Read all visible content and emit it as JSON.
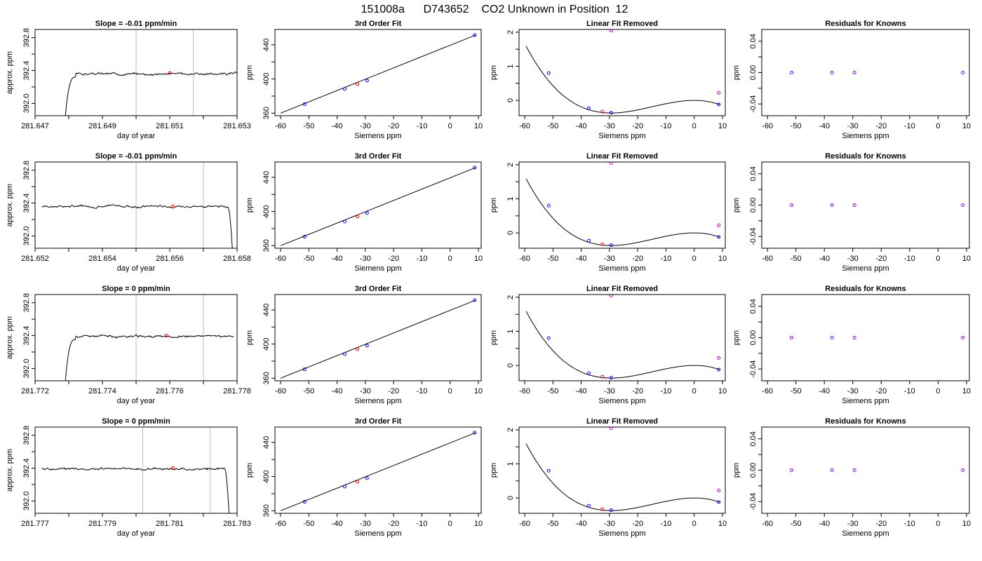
{
  "page_title": "151008a      D743652    CO2 Unknown in Position  12",
  "colors": {
    "frame": "#000000",
    "curve": "#000000",
    "known": "#0000ff",
    "unknown": "#ff0000",
    "removed": "#d000d0",
    "vline": "#bebebe"
  },
  "chart_data": [
    {
      "type": "line",
      "row": 0,
      "panel": "trace",
      "title": "Slope =  -0.01  ppm/min",
      "xlabel": "day of year",
      "ylabel": "approx. ppm",
      "xlim": [
        281.647,
        281.653
      ],
      "ylim": [
        391.85,
        392.9
      ],
      "xticks": [
        "281.647",
        "281.648",
        "281.649",
        "281.650",
        "281.651",
        "281.652",
        "281.653"
      ],
      "xtick_labels": [
        "281.647",
        "",
        "281.649",
        "",
        "281.651",
        "",
        "281.653"
      ],
      "yticks": [
        392.0,
        392.2,
        392.4,
        392.6,
        392.8
      ],
      "ytick_labels": [
        "392.0",
        "",
        "392.4",
        "",
        "392.8"
      ],
      "vlines": [
        281.65,
        281.6517
      ],
      "marker": {
        "x": 281.651,
        "y": 392.37
      },
      "trace": {
        "start": 281.6479,
        "end": 281.653,
        "rise_from": 391.84,
        "level": 392.36,
        "wiggle": 0.02,
        "seed": 3,
        "tail": false
      }
    },
    {
      "type": "scatter",
      "row": 0,
      "panel": "fit",
      "title": "3rd Order Fit",
      "xlabel": "Siemens ppm",
      "ylabel": "ppm",
      "xlim": [
        -62,
        11
      ],
      "ylim": [
        357,
        458
      ],
      "xticks": [
        -60,
        -50,
        -40,
        -30,
        -20,
        -10,
        0,
        10
      ],
      "yticks": [
        360,
        400,
        440
      ],
      "yminor": [
        380,
        420
      ],
      "knowns": [
        {
          "x": -51.5,
          "y": 370.5
        },
        {
          "x": -37.3,
          "y": 388.3
        },
        {
          "x": -29.4,
          "y": 398.2
        },
        {
          "x": 8.7,
          "y": 451.4
        }
      ],
      "unknown": {
        "x": -32.8,
        "y": 394.0
      },
      "line": {
        "x": [
          -60,
          9
        ],
        "y": [
          360,
          451.4
        ]
      }
    },
    {
      "type": "scatter",
      "row": 0,
      "panel": "resid",
      "title": "Linear Fit Removed",
      "xlabel": "Siemens ppm",
      "ylabel": "ppm",
      "xlim": [
        -62,
        11
      ],
      "ylim": [
        -0.45,
        2.08
      ],
      "xticks": [
        -60,
        -50,
        -40,
        -30,
        -20,
        -10,
        0,
        10
      ],
      "yticks": [
        0.0,
        1.0,
        2.0
      ],
      "yminor": [
        0.5,
        1.5
      ],
      "knowns": [
        {
          "x": -51.5,
          "y": 0.8
        },
        {
          "x": -37.3,
          "y": -0.23
        },
        {
          "x": -29.4,
          "y": -0.36
        },
        {
          "x": 8.7,
          "y": -0.12
        }
      ],
      "unknown": {
        "x": -32.5,
        "y": -0.33
      },
      "removed": [
        {
          "x": -29.4,
          "y": 2.05
        },
        {
          "x": 8.7,
          "y": 0.22
        }
      ],
      "curve": {
        "x0": -59.5,
        "x1": 9,
        "min": -29.4,
        "max": 0,
        "ymin": -0.37,
        "ymax": 0.0
      }
    },
    {
      "type": "scatter",
      "row": 0,
      "panel": "known",
      "title": "Residuals for Knowns",
      "xlabel": "Siemens ppm",
      "ylabel": "ppm",
      "xlim": [
        -62,
        11
      ],
      "ylim": [
        -0.055,
        0.055
      ],
      "xticks": [
        -60,
        -50,
        -40,
        -30,
        -20,
        -10,
        0,
        10
      ],
      "yticks": [
        -0.04,
        0.0,
        0.04
      ],
      "yminor": [
        -0.02,
        0.02
      ],
      "ytick_labels": [
        "-0.04",
        "0.00",
        "0.04"
      ],
      "knowns": [
        {
          "x": -51.5,
          "y": 0
        },
        {
          "x": -37.3,
          "y": 0
        },
        {
          "x": -29.4,
          "y": 0
        },
        {
          "x": 8.7,
          "y": 0
        }
      ]
    },
    {
      "type": "line",
      "row": 1,
      "panel": "trace",
      "title": "Slope =  -0.01  ppm/min",
      "xlabel": "day of year",
      "ylabel": "approx. ppm",
      "xlim": [
        281.652,
        281.658
      ],
      "ylim": [
        391.85,
        392.9
      ],
      "xticks": [
        "281.652",
        "281.653",
        "281.654",
        "281.655",
        "281.656",
        "281.657",
        "281.658"
      ],
      "xtick_labels": [
        "281.652",
        "",
        "281.654",
        "",
        "281.656",
        "",
        "281.658"
      ],
      "yticks": [
        392.0,
        392.2,
        392.4,
        392.6,
        392.8
      ],
      "ytick_labels": [
        "392.0",
        "",
        "392.4",
        "",
        "392.8"
      ],
      "vlines": [
        281.655,
        281.657
      ],
      "marker": {
        "x": 281.6561,
        "y": 392.36
      },
      "trace": {
        "start": 281.6522,
        "end": 281.6579,
        "rise_from": 391.84,
        "level": 392.36,
        "wiggle": 0.02,
        "seed": 7,
        "tail": true
      }
    },
    {
      "type": "scatter",
      "row": 1,
      "panel": "fit",
      "title": "3rd Order Fit",
      "xlabel": "Siemens ppm",
      "ylabel": "ppm",
      "xlim": [
        -62,
        11
      ],
      "ylim": [
        357,
        458
      ],
      "xticks": [
        -60,
        -50,
        -40,
        -30,
        -20,
        -10,
        0,
        10
      ],
      "yticks": [
        360,
        400,
        440
      ],
      "yminor": [
        380,
        420
      ],
      "knowns": [
        {
          "x": -51.5,
          "y": 370.5
        },
        {
          "x": -37.3,
          "y": 388.3
        },
        {
          "x": -29.4,
          "y": 398.2
        },
        {
          "x": 8.7,
          "y": 451.4
        }
      ],
      "unknown": {
        "x": -32.8,
        "y": 394.0
      },
      "line": {
        "x": [
          -60,
          9
        ],
        "y": [
          360,
          451.4
        ]
      }
    },
    {
      "type": "scatter",
      "row": 1,
      "panel": "resid",
      "title": "Linear Fit Removed",
      "xlabel": "Siemens ppm",
      "ylabel": "ppm",
      "xlim": [
        -62,
        11
      ],
      "ylim": [
        -0.45,
        2.08
      ],
      "xticks": [
        -60,
        -50,
        -40,
        -30,
        -20,
        -10,
        0,
        10
      ],
      "yticks": [
        0.0,
        1.0,
        2.0
      ],
      "yminor": [
        0.5,
        1.5
      ],
      "knowns": [
        {
          "x": -51.5,
          "y": 0.8
        },
        {
          "x": -37.3,
          "y": -0.23
        },
        {
          "x": -29.4,
          "y": -0.36
        },
        {
          "x": 8.7,
          "y": -0.12
        }
      ],
      "unknown": {
        "x": -32.5,
        "y": -0.33
      },
      "removed": [
        {
          "x": -29.4,
          "y": 2.05
        },
        {
          "x": 8.7,
          "y": 0.22
        }
      ],
      "curve": {
        "x0": -59.5,
        "x1": 9,
        "min": -29.4,
        "max": 0,
        "ymin": -0.37,
        "ymax": 0.0
      }
    },
    {
      "type": "scatter",
      "row": 1,
      "panel": "known",
      "title": "Residuals for Knowns",
      "xlabel": "Siemens ppm",
      "ylabel": "ppm",
      "xlim": [
        -62,
        11
      ],
      "ylim": [
        -0.055,
        0.055
      ],
      "xticks": [
        -60,
        -50,
        -40,
        -30,
        -20,
        -10,
        0,
        10
      ],
      "yticks": [
        -0.04,
        0.0,
        0.04
      ],
      "yminor": [
        -0.02,
        0.02
      ],
      "ytick_labels": [
        "-0.04",
        "0.00",
        "0.04"
      ],
      "knowns": [
        {
          "x": -51.5,
          "y": 0
        },
        {
          "x": -37.3,
          "y": 0
        },
        {
          "x": -29.4,
          "y": 0
        },
        {
          "x": 8.7,
          "y": 0
        }
      ]
    },
    {
      "type": "line",
      "row": 2,
      "panel": "trace",
      "title": "Slope =  0  ppm/min",
      "xlabel": "day of year",
      "ylabel": "approx. ppm",
      "xlim": [
        281.772,
        281.778
      ],
      "ylim": [
        391.85,
        392.9
      ],
      "xticks": [
        "281.772",
        "281.773",
        "281.774",
        "281.775",
        "281.776",
        "281.777",
        "281.778"
      ],
      "xtick_labels": [
        "281.772",
        "",
        "281.774",
        "",
        "281.776",
        "",
        "281.778"
      ],
      "yticks": [
        392.0,
        392.2,
        392.4,
        392.6,
        392.8
      ],
      "ytick_labels": [
        "392.0",
        "",
        "392.4",
        "",
        "392.8"
      ],
      "vlines": [
        281.775,
        281.777
      ],
      "marker": {
        "x": 281.7759,
        "y": 392.4
      },
      "trace": {
        "start": 281.7729,
        "end": 281.7779,
        "rise_from": 391.84,
        "level": 392.39,
        "wiggle": 0.02,
        "seed": 11,
        "tail": false
      }
    },
    {
      "type": "scatter",
      "row": 2,
      "panel": "fit",
      "title": "3rd Order Fit",
      "xlabel": "Siemens ppm",
      "ylabel": "ppm",
      "xlim": [
        -62,
        11
      ],
      "ylim": [
        357,
        458
      ],
      "xticks": [
        -60,
        -50,
        -40,
        -30,
        -20,
        -10,
        0,
        10
      ],
      "yticks": [
        360,
        400,
        440
      ],
      "yminor": [
        380,
        420
      ],
      "knowns": [
        {
          "x": -51.5,
          "y": 370.5
        },
        {
          "x": -37.3,
          "y": 388.3
        },
        {
          "x": -29.4,
          "y": 398.2
        },
        {
          "x": 8.7,
          "y": 451.4
        }
      ],
      "unknown": {
        "x": -32.8,
        "y": 394.0
      },
      "line": {
        "x": [
          -60,
          9
        ],
        "y": [
          360,
          451.4
        ]
      }
    },
    {
      "type": "scatter",
      "row": 2,
      "panel": "resid",
      "title": "Linear Fit Removed",
      "xlabel": "Siemens ppm",
      "ylabel": "ppm",
      "xlim": [
        -62,
        11
      ],
      "ylim": [
        -0.45,
        2.08
      ],
      "xticks": [
        -60,
        -50,
        -40,
        -30,
        -20,
        -10,
        0,
        10
      ],
      "yticks": [
        0.0,
        1.0,
        2.0
      ],
      "yminor": [
        0.5,
        1.5
      ],
      "knowns": [
        {
          "x": -51.5,
          "y": 0.8
        },
        {
          "x": -37.3,
          "y": -0.23
        },
        {
          "x": -29.4,
          "y": -0.36
        },
        {
          "x": 8.7,
          "y": -0.12
        }
      ],
      "unknown": {
        "x": -32.5,
        "y": -0.33
      },
      "removed": [
        {
          "x": -29.4,
          "y": 2.05
        },
        {
          "x": 8.7,
          "y": 0.22
        }
      ],
      "curve": {
        "x0": -59.5,
        "x1": 9,
        "min": -29.4,
        "max": 0,
        "ymin": -0.37,
        "ymax": 0.0
      }
    },
    {
      "type": "scatter",
      "row": 2,
      "panel": "known",
      "title": "Residuals for Knowns",
      "xlabel": "Siemens ppm",
      "ylabel": "ppm",
      "xlim": [
        -62,
        11
      ],
      "ylim": [
        -0.055,
        0.055
      ],
      "xticks": [
        -60,
        -50,
        -40,
        -30,
        -20,
        -10,
        0,
        10
      ],
      "yticks": [
        -0.04,
        0.0,
        0.04
      ],
      "yminor": [
        -0.02,
        0.02
      ],
      "ytick_labels": [
        "-0.04",
        "0.00",
        "0.04"
      ],
      "knowns": [
        {
          "x": -51.5,
          "y": 0
        },
        {
          "x": -37.3,
          "y": 0
        },
        {
          "x": -29.4,
          "y": 0
        },
        {
          "x": 8.7,
          "y": 0
        }
      ]
    },
    {
      "type": "line",
      "row": 3,
      "panel": "trace",
      "title": "Slope =  0  ppm/min",
      "xlabel": "day of year",
      "ylabel": "approx. ppm",
      "xlim": [
        281.777,
        281.783
      ],
      "ylim": [
        391.85,
        392.9
      ],
      "xticks": [
        "281.777",
        "281.778",
        "281.779",
        "281.780",
        "281.781",
        "281.782",
        "281.783"
      ],
      "xtick_labels": [
        "281.777",
        "",
        "281.779",
        "",
        "281.781",
        "",
        "281.783"
      ],
      "yticks": [
        392.0,
        392.2,
        392.4,
        392.6,
        392.8
      ],
      "ytick_labels": [
        "392.0",
        "",
        "392.4",
        "",
        "392.8"
      ],
      "vlines": [
        281.7802,
        281.7822
      ],
      "marker": {
        "x": 281.7811,
        "y": 392.4
      },
      "trace": {
        "start": 281.7772,
        "end": 281.7828,
        "rise_from": 391.84,
        "level": 392.39,
        "wiggle": 0.02,
        "seed": 19,
        "tail": true
      }
    },
    {
      "type": "scatter",
      "row": 3,
      "panel": "fit",
      "title": "3rd Order Fit",
      "xlabel": "Siemens ppm",
      "ylabel": "ppm",
      "xlim": [
        -62,
        11
      ],
      "ylim": [
        357,
        458
      ],
      "xticks": [
        -60,
        -50,
        -40,
        -30,
        -20,
        -10,
        0,
        10
      ],
      "yticks": [
        360,
        400,
        440
      ],
      "yminor": [
        380,
        420
      ],
      "knowns": [
        {
          "x": -51.5,
          "y": 370.5
        },
        {
          "x": -37.3,
          "y": 388.3
        },
        {
          "x": -29.4,
          "y": 398.2
        },
        {
          "x": 8.7,
          "y": 451.4
        }
      ],
      "unknown": {
        "x": -32.8,
        "y": 394.0
      },
      "line": {
        "x": [
          -60,
          9
        ],
        "y": [
          360,
          451.4
        ]
      }
    },
    {
      "type": "scatter",
      "row": 3,
      "panel": "resid",
      "title": "Linear Fit Removed",
      "xlabel": "Siemens ppm",
      "ylabel": "ppm",
      "xlim": [
        -62,
        11
      ],
      "ylim": [
        -0.45,
        2.08
      ],
      "xticks": [
        -60,
        -50,
        -40,
        -30,
        -20,
        -10,
        0,
        10
      ],
      "yticks": [
        0.0,
        1.0,
        2.0
      ],
      "yminor": [
        0.5,
        1.5
      ],
      "knowns": [
        {
          "x": -51.5,
          "y": 0.8
        },
        {
          "x": -37.3,
          "y": -0.23
        },
        {
          "x": -29.4,
          "y": -0.36
        },
        {
          "x": 8.7,
          "y": -0.12
        }
      ],
      "unknown": {
        "x": -32.5,
        "y": -0.33
      },
      "removed": [
        {
          "x": -29.4,
          "y": 2.05
        },
        {
          "x": 8.7,
          "y": 0.22
        }
      ],
      "curve": {
        "x0": -59.5,
        "x1": 9,
        "min": -29.4,
        "max": 0,
        "ymin": -0.37,
        "ymax": 0.0
      }
    },
    {
      "type": "scatter",
      "row": 3,
      "panel": "known",
      "title": "Residuals for Knowns",
      "xlabel": "Siemens ppm",
      "ylabel": "ppm",
      "xlim": [
        -62,
        11
      ],
      "ylim": [
        -0.055,
        0.055
      ],
      "xticks": [
        -60,
        -50,
        -40,
        -30,
        -20,
        -10,
        0,
        10
      ],
      "yticks": [
        -0.04,
        0.0,
        0.04
      ],
      "yminor": [
        -0.02,
        0.02
      ],
      "ytick_labels": [
        "-0.04",
        "0.00",
        "0.04"
      ],
      "knowns": [
        {
          "x": -51.5,
          "y": 0
        },
        {
          "x": -37.3,
          "y": 0
        },
        {
          "x": -29.4,
          "y": 0
        },
        {
          "x": 8.7,
          "y": 0
        }
      ]
    }
  ]
}
